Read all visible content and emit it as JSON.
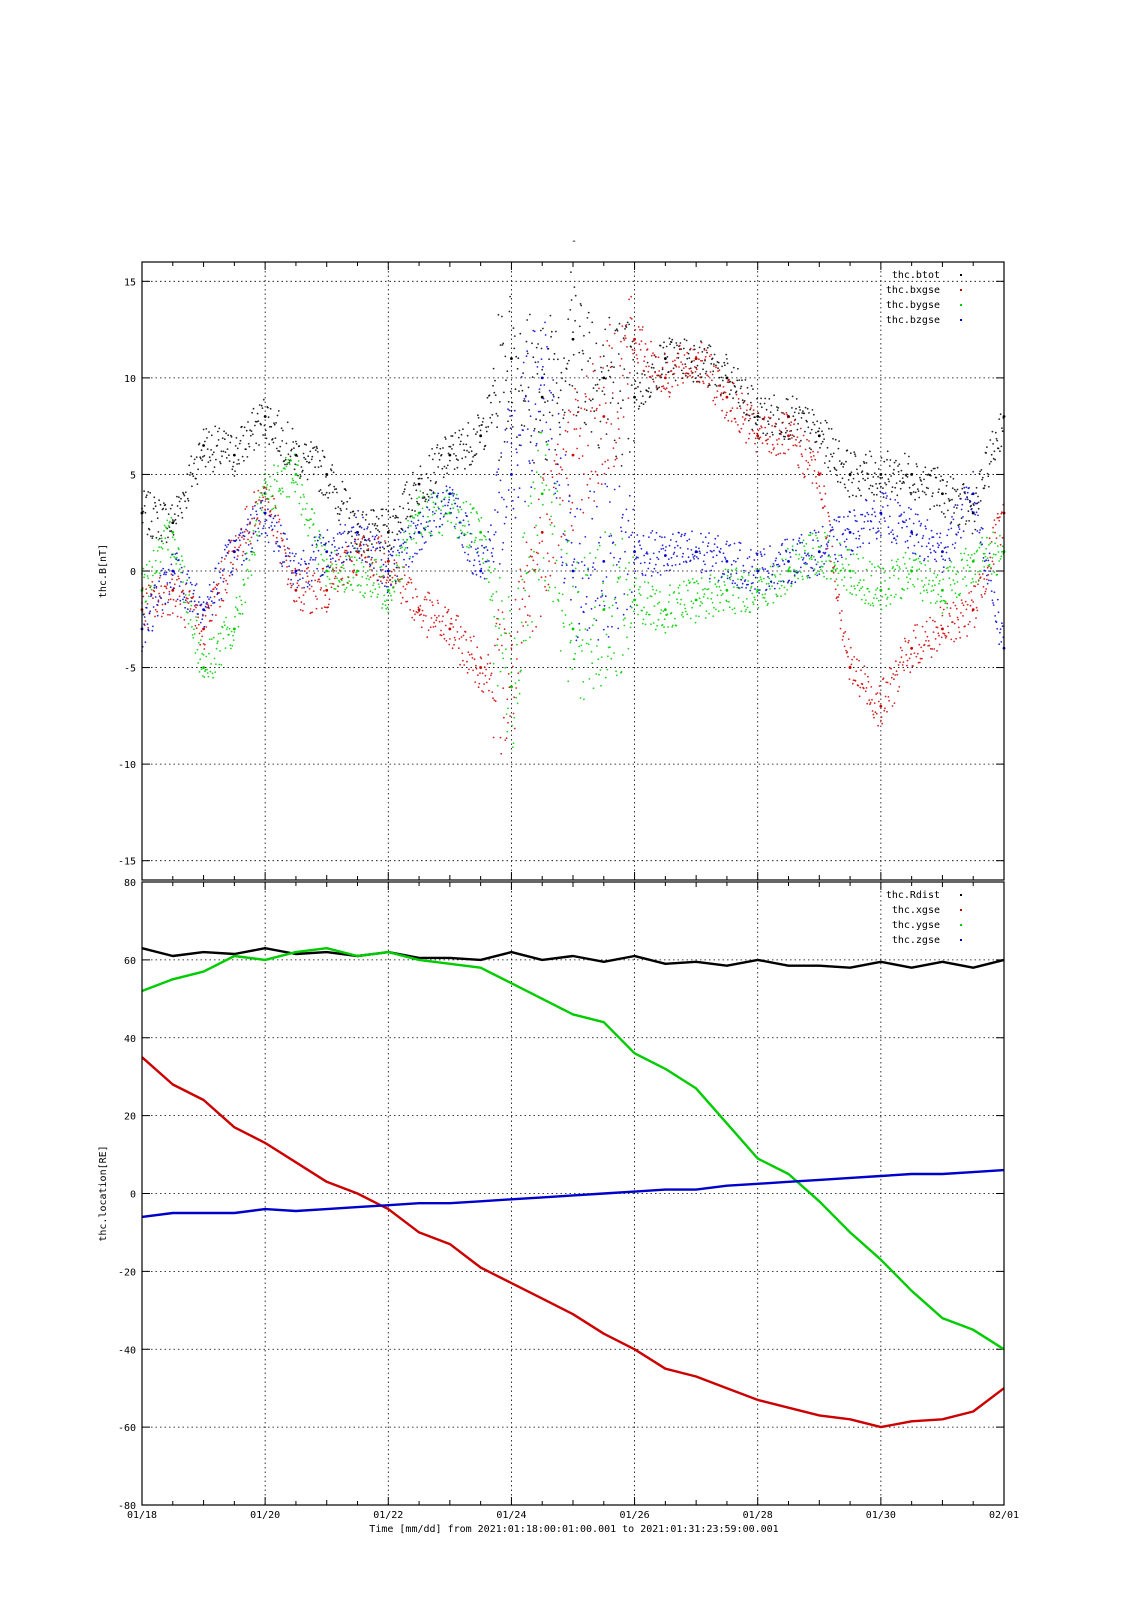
{
  "colors": {
    "btot": "#000000",
    "bxgse": "#cc0000",
    "bygse": "#00cc00",
    "bzgse": "#0000cc"
  },
  "figure": {
    "title": "-",
    "xlabel": "Time [mm/dd]  from 2021:01:18:00:01:00.001  to  2021:01:31:23:59:00.001",
    "xticks": [
      "01/18",
      "01/20",
      "01/22",
      "01/24",
      "01/26",
      "01/28",
      "01/30",
      "02/01"
    ]
  },
  "chart_data": [
    {
      "type": "scatter",
      "ylabel": "thc.B[nT]",
      "xlim": [
        "01/18",
        "02/01"
      ],
      "x_unit": "days",
      "ylim": [
        -16,
        16
      ],
      "yticks": [
        15,
        10,
        5,
        0,
        -5,
        -10,
        -15
      ],
      "grid": true,
      "legend_position": "top-right",
      "x": [
        0,
        0.5,
        1,
        1.5,
        2,
        2.5,
        3,
        3.5,
        4,
        4.5,
        5,
        5.5,
        6,
        6.5,
        7,
        7.5,
        8,
        8.5,
        9,
        9.5,
        10,
        10.5,
        11,
        11.5,
        12,
        12.5,
        13,
        13.5,
        14
      ],
      "series": [
        {
          "name": "thc.btot",
          "color": "#000000",
          "values": [
            3,
            2.5,
            6.5,
            6,
            8,
            6,
            5,
            2,
            2,
            4.5,
            6,
            7,
            11,
            9,
            12,
            10,
            9,
            11,
            11,
            10,
            8,
            8,
            7,
            5,
            5,
            5,
            4,
            3,
            8
          ]
        },
        {
          "name": "thc.bxgse",
          "color": "#cc0000",
          "values": [
            -2,
            -1,
            -3,
            1,
            4,
            -1,
            -1,
            1,
            0.5,
            -2,
            -3,
            -5,
            -6,
            2,
            6,
            8,
            12,
            10,
            11,
            9,
            7,
            7,
            5,
            -5,
            -7,
            -4,
            -3,
            -2,
            3
          ]
        },
        {
          "name": "thc.bygse",
          "color": "#00cc00",
          "values": [
            -1,
            2,
            -5,
            -3,
            4,
            5,
            0,
            0,
            -1,
            3,
            3,
            2,
            -6,
            4,
            -3,
            -2,
            -1.5,
            -2,
            -1.5,
            -1,
            -1,
            0,
            1,
            0,
            -1,
            0,
            -1,
            0.5,
            1
          ]
        },
        {
          "name": "thc.bzgse",
          "color": "#0000cc",
          "values": [
            -3,
            0,
            -2,
            1,
            3,
            0,
            1,
            2,
            0,
            2,
            4,
            0,
            5,
            10,
            0,
            0.5,
            1,
            0.8,
            1,
            0.5,
            0,
            0.5,
            1,
            2,
            3,
            2,
            1,
            4,
            -4
          ]
        }
      ]
    },
    {
      "type": "line",
      "ylabel": "thc.location[RE]",
      "xlim": [
        "01/18",
        "02/01"
      ],
      "x_unit": "days",
      "ylim": [
        -80,
        80
      ],
      "yticks": [
        80,
        60,
        40,
        20,
        0,
        -20,
        -40,
        -60,
        -80
      ],
      "grid": true,
      "legend_position": "top-right",
      "x": [
        0,
        0.5,
        1,
        1.5,
        2,
        2.5,
        3,
        3.5,
        4,
        4.5,
        5,
        5.5,
        6,
        6.5,
        7,
        7.5,
        8,
        8.5,
        9,
        9.5,
        10,
        10.5,
        11,
        11.5,
        12,
        12.5,
        13,
        13.5,
        14
      ],
      "series": [
        {
          "name": "thc.Rdist",
          "color": "#000000",
          "values": [
            63,
            61,
            62,
            61.5,
            63,
            61.5,
            62,
            61,
            62,
            60.5,
            60.5,
            60,
            62,
            60,
            61,
            59.5,
            61,
            59,
            59.5,
            58.5,
            60,
            58.5,
            58.5,
            58,
            59.5,
            58,
            59.5,
            58,
            60
          ]
        },
        {
          "name": "thc.xgse",
          "color": "#cc0000",
          "values": [
            35,
            28,
            24,
            17,
            13,
            8,
            3,
            0,
            -4,
            -10,
            -13,
            -19,
            -23,
            -27,
            -31,
            -36,
            -40,
            -45,
            -47,
            -50,
            -53,
            -55,
            -57,
            -58,
            -60,
            -58.5,
            -58,
            -56,
            -50
          ]
        },
        {
          "name": "thc.ygse",
          "color": "#00cc00",
          "values": [
            52,
            55,
            57,
            61,
            60,
            62,
            63,
            61,
            62,
            60,
            59,
            58,
            54,
            50,
            46,
            44,
            36,
            32,
            27,
            18,
            9,
            5,
            -2,
            -10,
            -17,
            -25,
            -32,
            -35,
            -40
          ]
        },
        {
          "name": "thc.zgse",
          "color": "#0000cc",
          "values": [
            -6,
            -5,
            -5,
            -5,
            -4,
            -4.5,
            -4,
            -3.5,
            -3,
            -2.5,
            -2.5,
            -2,
            -1.5,
            -1,
            -0.5,
            0,
            0.5,
            1,
            1,
            2,
            2.5,
            3,
            3.5,
            4,
            4.5,
            5,
            5,
            5.5,
            6
          ]
        }
      ]
    }
  ]
}
